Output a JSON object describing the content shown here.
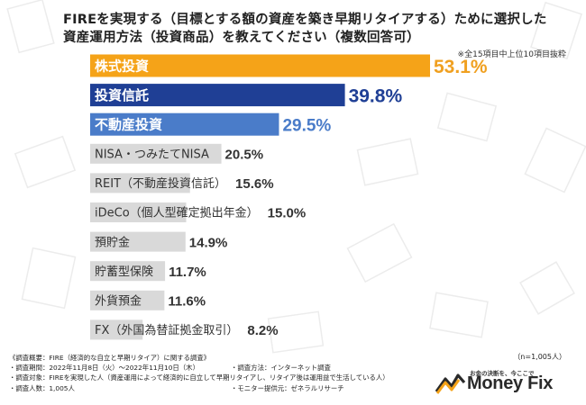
{
  "title": {
    "line1": "FIREを実現する（目標とする額の資産を築き早期リタイアする）ために選択した",
    "line2": "資産運用方法（投資商品）を教えてください（複数回答可）"
  },
  "note": "※全15項目中上位10項目抜粋",
  "chart_data": {
    "type": "bar",
    "orientation": "horizontal",
    "categories": [
      "株式投資",
      "投資信託",
      "不動産投資",
      "NISA・つみたてNISA",
      "REIT（不動産投資信託）",
      "iDeCo（個人型確定拠出年金）",
      "預貯金",
      "貯蓄型保険",
      "外貨預金",
      "FX（外国為替証拠金取引）"
    ],
    "values": [
      53.1,
      39.8,
      29.5,
      20.5,
      15.6,
      15.0,
      14.9,
      11.7,
      11.6,
      8.2
    ],
    "value_labels": [
      "53.1%",
      "39.8%",
      "29.5%",
      "20.5%",
      "15.6%",
      "15.0%",
      "14.9%",
      "11.7%",
      "11.6%",
      "8.2%"
    ],
    "unit": "%",
    "xlim": [
      0,
      60
    ],
    "colors": {
      "top1": "#f5a318",
      "top2": "#1f3f95",
      "top3": "#4a7cc9",
      "other": "#d9d9d9",
      "top1_label": "#f0a020",
      "top2_label": "#1f3f95",
      "top3_label": "#4a7cc9",
      "other_label": "#333333"
    }
  },
  "survey": {
    "heading": "《調査概要：FIRE（経済的な自立と早期リタイア）に関する調査》",
    "period": "・調査期間：2022年11月8日（火）～2022年11月10日（木）",
    "method": "・調査方法：インターネット調査",
    "target": "・調査対象：FIREを実現した人（資産運用によって経済的に自立して早期リタイアし、リタイア後は運用益で生活している人）",
    "count": "・調査人数：1,005人",
    "monitor": "・モニター提供元：ゼネラルリサーチ"
  },
  "sample_size": "（n=1,005人）",
  "brand": {
    "tagline": "お金の決断を、今ここで",
    "name": "Money Fix"
  }
}
